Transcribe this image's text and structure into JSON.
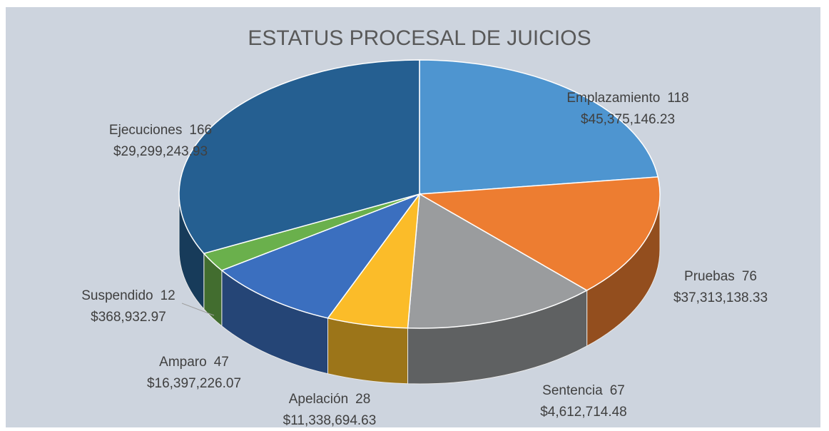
{
  "chart_data": {
    "type": "pie3d",
    "title": "ESTATUS PROCESAL DE JUICIOS",
    "categories": [
      "Emplazamiento",
      "Pruebas",
      "Sentencia",
      "Apelación",
      "Amparo",
      "Suspendido",
      "Ejecuciones"
    ],
    "values": [
      118,
      76,
      67,
      28,
      47,
      12,
      166
    ],
    "amounts": [
      {
        "value": 45375146.23,
        "label": "$45,375,146.23"
      },
      {
        "value": 37313138.33,
        "label": "$37,313,138.33"
      },
      {
        "value": 4612714.48,
        "label": "$4,612,714.48"
      },
      {
        "value": 11338694.63,
        "label": "$11,338,694.63"
      },
      {
        "value": 16397226.07,
        "label": "$16,397,226.07"
      },
      {
        "value": 368932.97,
        "label": "$368,932.97"
      },
      {
        "value": 29299243.93,
        "label": "$29,299,243.93"
      }
    ],
    "colors": [
      "#4e95d0",
      "#ed7d31",
      "#9a9c9e",
      "#fbbc29",
      "#3b6fbf",
      "#6ab04c",
      "#255f91"
    ]
  }
}
